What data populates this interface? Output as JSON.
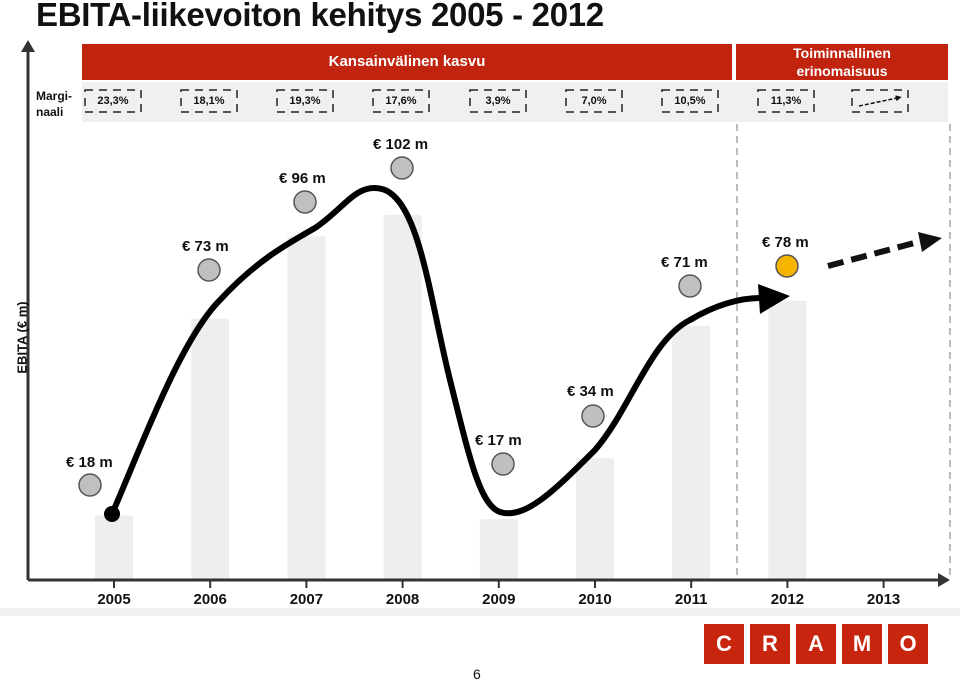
{
  "page": {
    "title": "EBITA-liikevoiton kehitys 2005 - 2012",
    "margin_label": "Margi- naali",
    "band_growth": "Kansainvälinen kasvu",
    "band_excellence": "Toiminnallinen erinomaisuus",
    "page_number": "6",
    "logo_letters": [
      "C",
      "R",
      "A",
      "M",
      "O"
    ]
  },
  "colors": {
    "band": "#c0240f",
    "bar": "#eeeeee",
    "marker": "#c0c0c0",
    "highlight_marker": "#f5b400",
    "logo": "#c8250f"
  },
  "chart_data": {
    "type": "bar",
    "title": "EBITA-liikevoiton kehitys 2005 - 2012",
    "ylabel": "EBITA (€ m)",
    "xlabel": "",
    "categories": [
      "2005",
      "2006",
      "2007",
      "2008",
      "2009",
      "2010",
      "2011",
      "2012",
      "2013"
    ],
    "values": [
      18,
      73,
      96,
      102,
      17,
      34,
      71,
      78,
      null
    ],
    "value_labels": [
      "€ 18 m",
      "€ 73 m",
      "€ 96 m",
      "€ 102 m",
      "€ 17 m",
      "€ 34 m",
      "€ 71 m",
      "€ 78 m",
      ""
    ],
    "margins": [
      "23,3%",
      "18,1%",
      "19,3%",
      "17,6%",
      "3,9%",
      "7,0%",
      "10,5%",
      "11,3%",
      ""
    ],
    "ylim": [
      0,
      110
    ],
    "grid": false,
    "highlight_category": "2012",
    "forecast_category": "2013"
  }
}
